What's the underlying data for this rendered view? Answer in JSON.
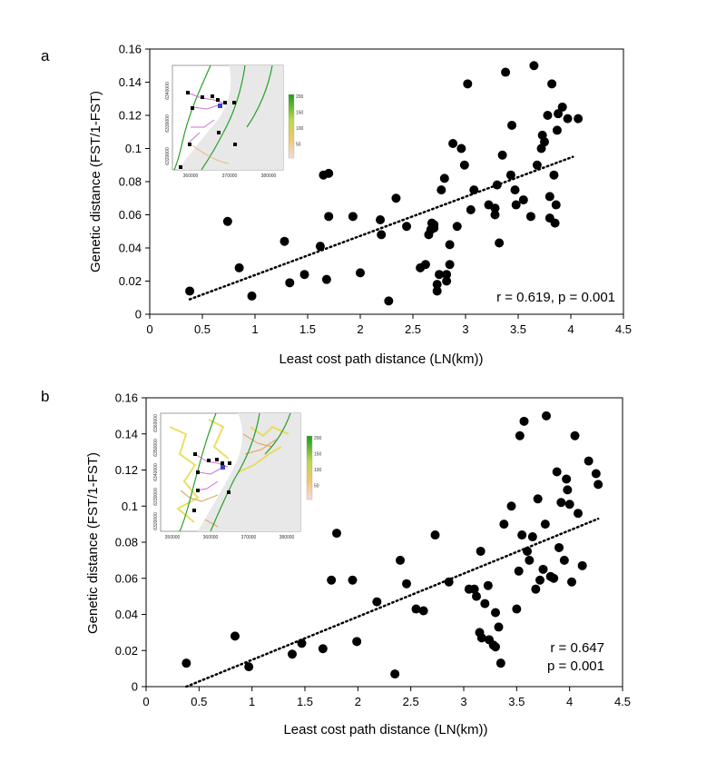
{
  "chart_data": [
    {
      "type": "scatter",
      "panel_label": "a",
      "xlabel": "Least cost path distance (LN(km))",
      "ylabel": "Genetic distance (FST/1-FST)",
      "xlim": [
        0,
        4.5
      ],
      "ylim": [
        0,
        0.16
      ],
      "xticks": [
        "0",
        "0.5",
        "1",
        "1.5",
        "2",
        "2.5",
        "3",
        "3.5",
        "4",
        "4.5"
      ],
      "yticks": [
        "0",
        "0.02",
        "0.04",
        "0.06",
        "0.08",
        "0.1",
        "0.12",
        "0.14",
        "0.16"
      ],
      "x": [
        0.38,
        0.74,
        0.85,
        0.97,
        1.28,
        1.33,
        1.47,
        1.62,
        1.65,
        1.68,
        1.7,
        1.7,
        1.93,
        2.0,
        2.19,
        2.2,
        2.27,
        2.34,
        2.44,
        2.57,
        2.62,
        2.65,
        2.67,
        2.68,
        2.7,
        2.7,
        2.73,
        2.73,
        2.75,
        2.77,
        2.8,
        2.82,
        2.82,
        2.85,
        2.85,
        2.88,
        2.92,
        2.96,
        2.99,
        3.02,
        3.05,
        3.08,
        3.22,
        3.28,
        3.28,
        3.3,
        3.32,
        3.35,
        3.38,
        3.43,
        3.44,
        3.47,
        3.48,
        3.55,
        3.62,
        3.65,
        3.68,
        3.72,
        3.73,
        3.75,
        3.78,
        3.8,
        3.8,
        3.82,
        3.84,
        3.85,
        3.86,
        3.87,
        3.88,
        3.92,
        3.97,
        4.07
      ],
      "y": [
        0.014,
        0.056,
        0.028,
        0.011,
        0.044,
        0.019,
        0.024,
        0.041,
        0.084,
        0.021,
        0.059,
        0.085,
        0.059,
        0.025,
        0.057,
        0.048,
        0.008,
        0.07,
        0.053,
        0.028,
        0.03,
        0.048,
        0.051,
        0.055,
        0.052,
        0.054,
        0.014,
        0.018,
        0.024,
        0.075,
        0.082,
        0.02,
        0.024,
        0.03,
        0.042,
        0.103,
        0.053,
        0.1,
        0.09,
        0.139,
        0.063,
        0.075,
        0.066,
        0.06,
        0.064,
        0.078,
        0.043,
        0.096,
        0.146,
        0.084,
        0.114,
        0.075,
        0.066,
        0.069,
        0.059,
        0.15,
        0.09,
        0.1,
        0.108,
        0.104,
        0.12,
        0.071,
        0.058,
        0.139,
        0.084,
        0.055,
        0.066,
        0.111,
        0.121,
        0.125,
        0.118,
        0.118
      ],
      "trendline": {
        "x": [
          0.38,
          4.02
        ],
        "y": [
          0.009,
          0.095
        ],
        "style": "dotted"
      },
      "annotation": "r = 0.619, p = 0.001",
      "inset": {
        "x_ticks": [
          "360000",
          "370000",
          "380000"
        ],
        "y_ticks": [
          "6340000",
          "6330000",
          "6320000"
        ],
        "legend_values": [
          "200",
          "150",
          "100",
          "50"
        ]
      },
      "grid": false
    },
    {
      "type": "scatter",
      "panel_label": "b",
      "xlabel": "Least cost path distance (LN(km))",
      "ylabel": "Genetic distance (FST/1-FST)",
      "xlim": [
        0,
        4.5
      ],
      "ylim": [
        0,
        0.16
      ],
      "xticks": [
        "0",
        "0.5",
        "1",
        "1.5",
        "2",
        "2.5",
        "3",
        "3.5",
        "4",
        "4.5"
      ],
      "yticks": [
        "0",
        "0.02",
        "0.04",
        "0.06",
        "0.08",
        "0.1",
        "0.12",
        "0.14",
        "0.16"
      ],
      "x": [
        0.38,
        0.84,
        0.97,
        1.38,
        1.47,
        1.67,
        1.75,
        1.8,
        1.95,
        1.99,
        2.18,
        2.35,
        2.4,
        2.46,
        2.55,
        2.62,
        2.73,
        2.86,
        3.05,
        3.1,
        3.12,
        3.15,
        3.16,
        3.17,
        3.2,
        3.23,
        3.24,
        3.28,
        3.3,
        3.3,
        3.33,
        3.35,
        3.38,
        3.45,
        3.5,
        3.52,
        3.53,
        3.55,
        3.57,
        3.6,
        3.62,
        3.65,
        3.68,
        3.7,
        3.72,
        3.75,
        3.77,
        3.78,
        3.82,
        3.85,
        3.88,
        3.9,
        3.92,
        3.95,
        3.97,
        3.98,
        4.0,
        4.02,
        4.05,
        4.08,
        4.12,
        4.18,
        4.25,
        4.27
      ],
      "y": [
        0.013,
        0.028,
        0.011,
        0.018,
        0.024,
        0.021,
        0.059,
        0.085,
        0.059,
        0.025,
        0.047,
        0.007,
        0.07,
        0.057,
        0.043,
        0.042,
        0.084,
        0.058,
        0.054,
        0.054,
        0.05,
        0.03,
        0.075,
        0.027,
        0.046,
        0.056,
        0.026,
        0.023,
        0.022,
        0.041,
        0.033,
        0.013,
        0.09,
        0.1,
        0.043,
        0.064,
        0.139,
        0.084,
        0.147,
        0.075,
        0.07,
        0.083,
        0.054,
        0.104,
        0.059,
        0.065,
        0.09,
        0.15,
        0.061,
        0.06,
        0.119,
        0.077,
        0.102,
        0.07,
        0.115,
        0.109,
        0.101,
        0.058,
        0.139,
        0.096,
        0.067,
        0.125,
        0.118,
        0.112
      ],
      "trendline": {
        "x": [
          0.38,
          4.27
        ],
        "y": [
          0.0,
          0.093
        ],
        "style": "dotted"
      },
      "annotation_lines": [
        "r = 0.647",
        "p = 0.001"
      ],
      "inset": {
        "x_ticks": [
          "350000",
          "360000",
          "370000",
          "380000"
        ],
        "y_ticks": [
          "6360000",
          "6350000",
          "6340000",
          "6330000",
          "6320000"
        ],
        "legend_values": [
          "200",
          "150",
          "100",
          "50"
        ]
      },
      "grid": false
    }
  ]
}
